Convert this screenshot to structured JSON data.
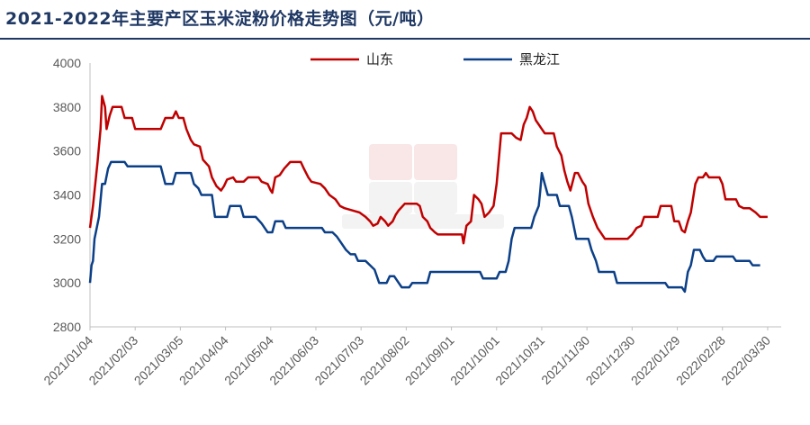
{
  "chart_data": {
    "type": "line",
    "title": "2021-2022年主要产区玉米淀粉价格走势图（元/吨）",
    "xlabel": "",
    "ylabel": "",
    "ylim": [
      2800,
      4000
    ],
    "yticks": [
      2800,
      3000,
      3200,
      3400,
      3600,
      3800,
      4000
    ],
    "x_start": "2021/01/04",
    "x_end": "2022/04/08",
    "x_tick_labels": [
      "2021/01/04",
      "2021/02/03",
      "2021/03/05",
      "2021/04/04",
      "2021/05/04",
      "2021/06/03",
      "2021/07/03",
      "2021/08/02",
      "2021/09/01",
      "2021/10/01",
      "2021/10/31",
      "2021/11/30",
      "2021/12/30",
      "2022/01/29",
      "2022/02/28",
      "2022/03/30"
    ],
    "grid": false,
    "legend_position": "top",
    "series": [
      {
        "name": "山东",
        "color": "#c00000",
        "points": [
          [
            "2021/01/04",
            3250
          ],
          [
            "2021/01/06",
            3350
          ],
          [
            "2021/01/09",
            3550
          ],
          [
            "2021/01/11",
            3700
          ],
          [
            "2021/01/12",
            3850
          ],
          [
            "2021/01/14",
            3800
          ],
          [
            "2021/01/15",
            3700
          ],
          [
            "2021/01/17",
            3760
          ],
          [
            "2021/01/19",
            3800
          ],
          [
            "2021/01/25",
            3800
          ],
          [
            "2021/01/27",
            3750
          ],
          [
            "2021/02/01",
            3750
          ],
          [
            "2021/02/03",
            3700
          ],
          [
            "2021/02/20",
            3700
          ],
          [
            "2021/02/23",
            3750
          ],
          [
            "2021/02/28",
            3750
          ],
          [
            "2021/03/02",
            3780
          ],
          [
            "2021/03/04",
            3750
          ],
          [
            "2021/03/07",
            3750
          ],
          [
            "2021/03/09",
            3700
          ],
          [
            "2021/03/12",
            3650
          ],
          [
            "2021/03/14",
            3630
          ],
          [
            "2021/03/18",
            3620
          ],
          [
            "2021/03/20",
            3560
          ],
          [
            "2021/03/24",
            3530
          ],
          [
            "2021/03/26",
            3480
          ],
          [
            "2021/03/29",
            3440
          ],
          [
            "2021/04/01",
            3420
          ],
          [
            "2021/04/03",
            3440
          ],
          [
            "2021/04/05",
            3470
          ],
          [
            "2021/04/09",
            3480
          ],
          [
            "2021/04/11",
            3460
          ],
          [
            "2021/04/16",
            3460
          ],
          [
            "2021/04/19",
            3480
          ],
          [
            "2021/04/26",
            3480
          ],
          [
            "2021/04/28",
            3460
          ],
          [
            "2021/05/02",
            3450
          ],
          [
            "2021/05/04",
            3420
          ],
          [
            "2021/05/05",
            3410
          ],
          [
            "2021/05/07",
            3480
          ],
          [
            "2021/05/10",
            3490
          ],
          [
            "2021/05/13",
            3520
          ],
          [
            "2021/05/17",
            3550
          ],
          [
            "2021/05/24",
            3550
          ],
          [
            "2021/05/26",
            3520
          ],
          [
            "2021/05/29",
            3480
          ],
          [
            "2021/05/31",
            3460
          ],
          [
            "2021/06/06",
            3450
          ],
          [
            "2021/06/09",
            3430
          ],
          [
            "2021/06/12",
            3400
          ],
          [
            "2021/06/16",
            3380
          ],
          [
            "2021/06/19",
            3350
          ],
          [
            "2021/06/22",
            3340
          ],
          [
            "2021/06/27",
            3330
          ],
          [
            "2021/07/02",
            3320
          ],
          [
            "2021/07/06",
            3300
          ],
          [
            "2021/07/09",
            3280
          ],
          [
            "2021/07/11",
            3260
          ],
          [
            "2021/07/14",
            3270
          ],
          [
            "2021/07/16",
            3300
          ],
          [
            "2021/07/19",
            3280
          ],
          [
            "2021/07/21",
            3260
          ],
          [
            "2021/07/24",
            3280
          ],
          [
            "2021/07/26",
            3310
          ],
          [
            "2021/07/28",
            3330
          ],
          [
            "2021/08/01",
            3360
          ],
          [
            "2021/08/09",
            3360
          ],
          [
            "2021/08/11",
            3350
          ],
          [
            "2021/08/13",
            3300
          ],
          [
            "2021/08/16",
            3280
          ],
          [
            "2021/08/18",
            3250
          ],
          [
            "2021/08/21",
            3230
          ],
          [
            "2021/08/23",
            3220
          ],
          [
            "2021/09/08",
            3220
          ],
          [
            "2021/09/09",
            3180
          ],
          [
            "2021/09/11",
            3260
          ],
          [
            "2021/09/14",
            3280
          ],
          [
            "2021/09/16",
            3400
          ],
          [
            "2021/09/19",
            3380
          ],
          [
            "2021/09/21",
            3360
          ],
          [
            "2021/09/23",
            3300
          ],
          [
            "2021/09/26",
            3320
          ],
          [
            "2021/09/29",
            3350
          ],
          [
            "2021/10/01",
            3450
          ],
          [
            "2021/10/04",
            3680
          ],
          [
            "2021/10/11",
            3680
          ],
          [
            "2021/10/14",
            3660
          ],
          [
            "2021/10/17",
            3650
          ],
          [
            "2021/10/19",
            3720
          ],
          [
            "2021/10/21",
            3750
          ],
          [
            "2021/10/23",
            3800
          ],
          [
            "2021/10/25",
            3780
          ],
          [
            "2021/10/27",
            3740
          ],
          [
            "2021/10/31",
            3700
          ],
          [
            "2021/11/02",
            3680
          ],
          [
            "2021/11/08",
            3680
          ],
          [
            "2021/11/10",
            3620
          ],
          [
            "2021/11/13",
            3580
          ],
          [
            "2021/11/15",
            3510
          ],
          [
            "2021/11/17",
            3460
          ],
          [
            "2021/11/19",
            3420
          ],
          [
            "2021/11/22",
            3500
          ],
          [
            "2021/11/24",
            3500
          ],
          [
            "2021/11/27",
            3460
          ],
          [
            "2021/11/29",
            3440
          ],
          [
            "2021/12/01",
            3360
          ],
          [
            "2021/12/04",
            3300
          ],
          [
            "2021/12/07",
            3250
          ],
          [
            "2021/12/10",
            3220
          ],
          [
            "2021/12/12",
            3200
          ],
          [
            "2021/12/27",
            3200
          ],
          [
            "2021/12/30",
            3220
          ],
          [
            "2022/01/02",
            3250
          ],
          [
            "2022/01/05",
            3260
          ],
          [
            "2022/01/07",
            3300
          ],
          [
            "2022/01/16",
            3300
          ],
          [
            "2022/01/18",
            3350
          ],
          [
            "2022/01/25",
            3350
          ],
          [
            "2022/01/27",
            3280
          ],
          [
            "2022/01/30",
            3280
          ],
          [
            "2022/02/01",
            3240
          ],
          [
            "2022/02/03",
            3230
          ],
          [
            "2022/02/05",
            3280
          ],
          [
            "2022/02/07",
            3320
          ],
          [
            "2022/02/10",
            3450
          ],
          [
            "2022/02/12",
            3480
          ],
          [
            "2022/02/15",
            3480
          ],
          [
            "2022/02/17",
            3500
          ],
          [
            "2022/02/19",
            3480
          ],
          [
            "2022/02/26",
            3480
          ],
          [
            "2022/02/28",
            3450
          ],
          [
            "2022/03/02",
            3380
          ],
          [
            "2022/03/09",
            3380
          ],
          [
            "2022/03/11",
            3350
          ],
          [
            "2022/03/14",
            3340
          ],
          [
            "2022/03/18",
            3340
          ],
          [
            "2022/03/22",
            3320
          ],
          [
            "2022/03/25",
            3300
          ],
          [
            "2022/03/30",
            3300
          ]
        ]
      },
      {
        "name": "黑龙江",
        "color": "#0b3f87",
        "points": [
          [
            "2021/01/04",
            3000
          ],
          [
            "2021/01/05",
            3080
          ],
          [
            "2021/01/06",
            3100
          ],
          [
            "2021/01/07",
            3200
          ],
          [
            "2021/01/10",
            3300
          ],
          [
            "2021/01/12",
            3450
          ],
          [
            "2021/01/14",
            3450
          ],
          [
            "2021/01/16",
            3520
          ],
          [
            "2021/01/18",
            3550
          ],
          [
            "2021/01/27",
            3550
          ],
          [
            "2021/01/29",
            3530
          ],
          [
            "2021/02/20",
            3530
          ],
          [
            "2021/02/23",
            3450
          ],
          [
            "2021/02/28",
            3450
          ],
          [
            "2021/03/02",
            3500
          ],
          [
            "2021/03/12",
            3500
          ],
          [
            "2021/03/14",
            3450
          ],
          [
            "2021/03/17",
            3430
          ],
          [
            "2021/03/19",
            3400
          ],
          [
            "2021/03/26",
            3400
          ],
          [
            "2021/03/28",
            3300
          ],
          [
            "2021/04/05",
            3300
          ],
          [
            "2021/04/07",
            3350
          ],
          [
            "2021/04/14",
            3350
          ],
          [
            "2021/04/16",
            3300
          ],
          [
            "2021/04/24",
            3300
          ],
          [
            "2021/04/28",
            3270
          ],
          [
            "2021/05/02",
            3230
          ],
          [
            "2021/05/05",
            3230
          ],
          [
            "2021/05/07",
            3280
          ],
          [
            "2021/05/12",
            3280
          ],
          [
            "2021/05/14",
            3250
          ],
          [
            "2021/06/07",
            3250
          ],
          [
            "2021/06/09",
            3230
          ],
          [
            "2021/06/14",
            3230
          ],
          [
            "2021/06/17",
            3210
          ],
          [
            "2021/06/20",
            3180
          ],
          [
            "2021/06/23",
            3150
          ],
          [
            "2021/06/26",
            3130
          ],
          [
            "2021/06/29",
            3130
          ],
          [
            "2021/07/01",
            3100
          ],
          [
            "2021/07/06",
            3100
          ],
          [
            "2021/07/09",
            3080
          ],
          [
            "2021/07/12",
            3060
          ],
          [
            "2021/07/15",
            3000
          ],
          [
            "2021/07/20",
            3000
          ],
          [
            "2021/07/22",
            3030
          ],
          [
            "2021/07/25",
            3030
          ],
          [
            "2021/07/28",
            3000
          ],
          [
            "2021/07/30",
            2980
          ],
          [
            "2021/08/04",
            2980
          ],
          [
            "2021/08/06",
            3000
          ],
          [
            "2021/08/16",
            3000
          ],
          [
            "2021/08/18",
            3050
          ],
          [
            "2021/09/20",
            3050
          ],
          [
            "2021/09/22",
            3020
          ],
          [
            "2021/10/01",
            3020
          ],
          [
            "2021/10/03",
            3050
          ],
          [
            "2021/10/07",
            3050
          ],
          [
            "2021/10/09",
            3100
          ],
          [
            "2021/10/11",
            3200
          ],
          [
            "2021/10/13",
            3250
          ],
          [
            "2021/10/24",
            3250
          ],
          [
            "2021/10/26",
            3300
          ],
          [
            "2021/10/29",
            3350
          ],
          [
            "2021/10/30",
            3420
          ],
          [
            "2021/10/31",
            3500
          ],
          [
            "2021/11/02",
            3450
          ],
          [
            "2021/11/04",
            3400
          ],
          [
            "2021/11/10",
            3400
          ],
          [
            "2021/11/12",
            3350
          ],
          [
            "2021/11/18",
            3350
          ],
          [
            "2021/11/20",
            3300
          ],
          [
            "2021/11/23",
            3200
          ],
          [
            "2021/12/01",
            3200
          ],
          [
            "2021/12/03",
            3150
          ],
          [
            "2021/12/06",
            3100
          ],
          [
            "2021/12/08",
            3050
          ],
          [
            "2021/12/18",
            3050
          ],
          [
            "2021/12/20",
            3000
          ],
          [
            "2022/01/21",
            3000
          ],
          [
            "2022/01/23",
            2980
          ],
          [
            "2022/02/01",
            2980
          ],
          [
            "2022/02/03",
            2960
          ],
          [
            "2022/02/05",
            3050
          ],
          [
            "2022/02/07",
            3080
          ],
          [
            "2022/02/09",
            3150
          ],
          [
            "2022/02/13",
            3150
          ],
          [
            "2022/02/15",
            3120
          ],
          [
            "2022/02/17",
            3100
          ],
          [
            "2022/02/22",
            3100
          ],
          [
            "2022/02/24",
            3120
          ],
          [
            "2022/03/07",
            3120
          ],
          [
            "2022/03/09",
            3100
          ],
          [
            "2022/03/18",
            3100
          ],
          [
            "2022/03/20",
            3080
          ],
          [
            "2022/03/25",
            3080
          ]
        ]
      }
    ]
  }
}
